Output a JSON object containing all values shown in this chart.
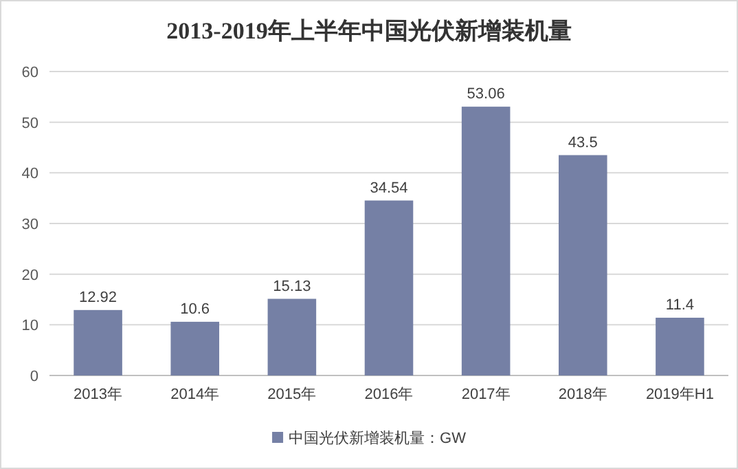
{
  "chart_data": {
    "type": "bar",
    "title": "2013-2019年上半年中国光伏新增装机量",
    "categories": [
      "2013年",
      "2014年",
      "2015年",
      "2016年",
      "2017年",
      "2018年",
      "2019年H1"
    ],
    "series": [
      {
        "name": "中国光伏新增装机量：GW",
        "color": "#7580a5",
        "values": [
          12.92,
          10.6,
          15.13,
          34.54,
          53.06,
          43.5,
          11.4
        ]
      }
    ],
    "ylim": [
      0,
      60
    ],
    "yticks": [
      0,
      10,
      20,
      30,
      40,
      50,
      60
    ],
    "grid": "y",
    "legend": "bottom",
    "data_labels": true
  }
}
